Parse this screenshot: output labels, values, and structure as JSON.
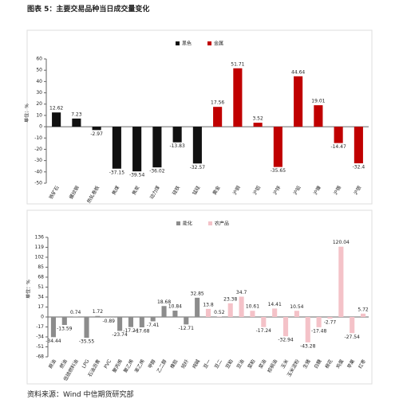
{
  "title": "图表 5：主要交易品种当日成交量变化",
  "source": "资料来源：Wind 中信期货研究部",
  "chart_data": [
    {
      "type": "bar",
      "y_label": "单位：%",
      "categories": [
        "铁矿石",
        "螺纹钢",
        "热轧卷板",
        "焦煤",
        "焦炭",
        "动力煤",
        "硅铁",
        "锰硅",
        "黄金",
        "沪铜",
        "沪铝",
        "沪锌",
        "沪铅",
        "沪镍",
        "沪锡",
        "沪银"
      ],
      "series": [
        {
          "name": "黑色",
          "color": "#111111",
          "values": [
            12.62,
            7.23,
            -2.97,
            -37.15,
            -39.54,
            -36.02,
            -13.83,
            -32.57,
            null,
            null,
            null,
            null,
            null,
            null,
            null,
            null
          ]
        },
        {
          "name": "金属",
          "color": "#c00000",
          "values": [
            null,
            null,
            null,
            null,
            null,
            null,
            null,
            null,
            17.56,
            51.71,
            3.52,
            -35.65,
            44.64,
            19.01,
            -14.47,
            -32.4
          ]
        }
      ],
      "ylim": [
        -50,
        60
      ],
      "yticks": [
        -50,
        -40,
        -30,
        -20,
        -10,
        0,
        10,
        20,
        30,
        40,
        50,
        60
      ]
    },
    {
      "type": "bar",
      "y_label": "单位：%",
      "categories": [
        "原油",
        "燃油",
        "低硫燃料油",
        "LPG",
        "石油沥青",
        "PVC",
        "聚丙烯",
        "聚乙烯",
        "苯乙烯",
        "甲醇",
        "乙二醇",
        "橡胶",
        "短纤",
        "纯碱",
        "豆一",
        "豆二",
        "豆粕",
        "豆油",
        "菜粕",
        "菜油",
        "棕榈油",
        "玉米",
        "玉米淀粉",
        "生猪",
        "白糖",
        "棉花",
        "鸡蛋",
        "苹果",
        "红枣"
      ],
      "series": [
        {
          "name": "能化",
          "color": "#8c8c8c",
          "values": [
            -34.44,
            -13.59,
            0.74,
            -35.55,
            1.72,
            -0.89,
            -23.74,
            -17.24,
            -17.68,
            -7.41,
            18.68,
            10.84,
            -12.71,
            32.85,
            null,
            null,
            null,
            null,
            null,
            null,
            null,
            null,
            null,
            null,
            null,
            null,
            null,
            null,
            null
          ]
        },
        {
          "name": "农产品",
          "color": "#f4c2c8",
          "values": [
            null,
            null,
            null,
            null,
            null,
            null,
            null,
            null,
            null,
            null,
            null,
            null,
            null,
            null,
            13.8,
            0.52,
            23.38,
            34.7,
            10.61,
            -17.24,
            14.41,
            -32.94,
            10.54,
            -43.28,
            -17.48,
            -2.77,
            120.04,
            -27.54,
            5.72
          ]
        }
      ],
      "ylim": [
        -68,
        136
      ],
      "yticks": [
        -68,
        -51,
        -34,
        -17,
        0,
        17,
        34,
        51,
        68,
        85,
        102,
        119,
        136
      ]
    }
  ]
}
